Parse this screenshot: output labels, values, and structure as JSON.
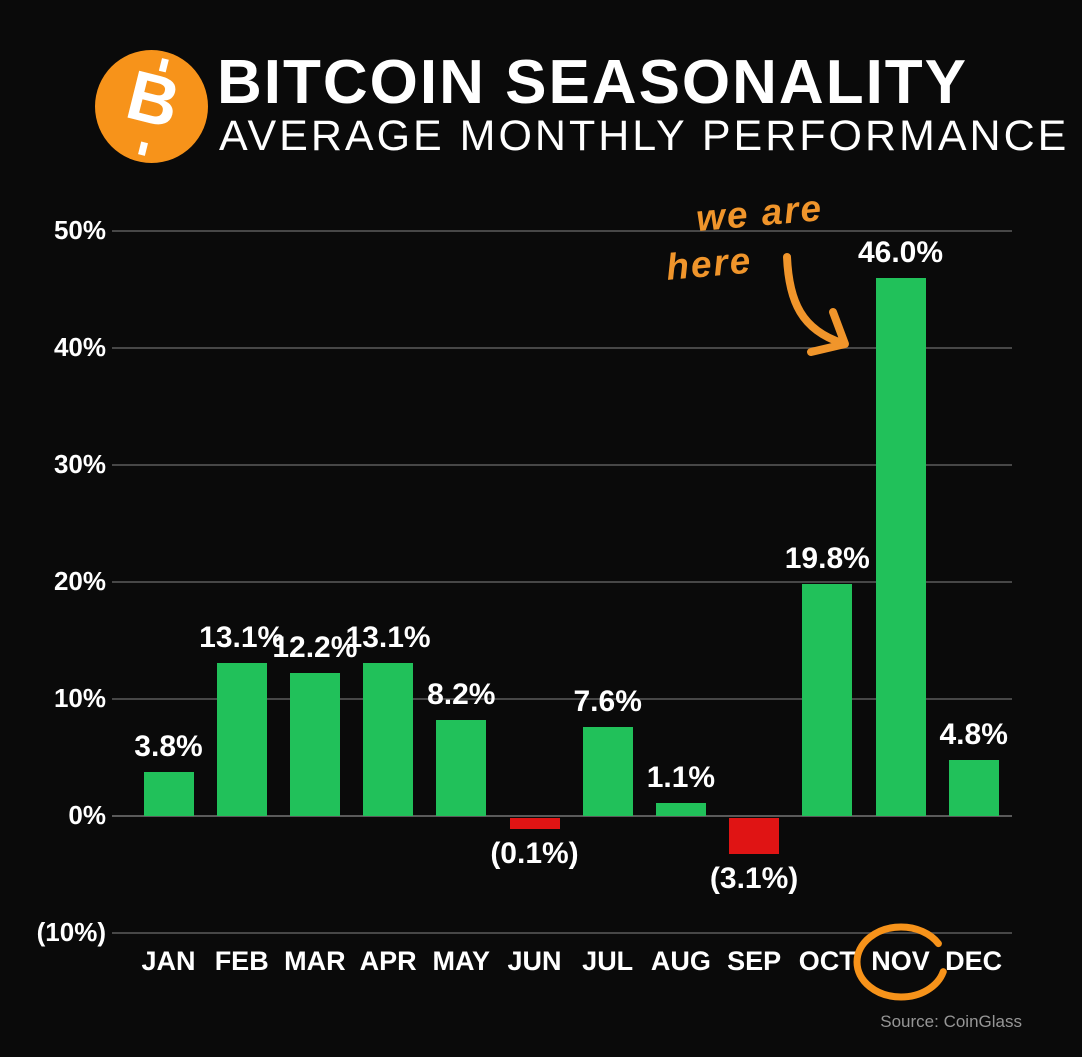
{
  "header": {
    "logo_letter": "B",
    "logo_color": "#f7931a"
  },
  "chart_data": {
    "type": "bar",
    "title": "BITCOIN SEASONALITY",
    "subtitle": "AVERAGE MONTHLY PERFORMANCE",
    "categories": [
      "JAN",
      "FEB",
      "MAR",
      "APR",
      "MAY",
      "JUN",
      "JUL",
      "AUG",
      "SEP",
      "OCT",
      "NOV",
      "DEC"
    ],
    "values": [
      3.8,
      13.1,
      12.2,
      13.1,
      8.2,
      -0.1,
      7.6,
      1.1,
      -3.1,
      19.8,
      46.0,
      4.8
    ],
    "value_labels": [
      "3.8%",
      "13.1%",
      "12.2%",
      "13.1%",
      "8.2%",
      "(0.1%)",
      "7.6%",
      "1.1%",
      "(3.1%)",
      "19.8%",
      "46.0%",
      "4.8%"
    ],
    "xlabel": "",
    "ylabel": "",
    "y_ticks": [
      "50%",
      "40%",
      "30%",
      "20%",
      "10%",
      "0%",
      "(10%)"
    ],
    "y_tick_values": [
      50,
      40,
      30,
      20,
      10,
      0,
      -10
    ],
    "ylim": [
      -10,
      55
    ],
    "grid": true,
    "legend": "none",
    "positive_color": "#21c15a",
    "negative_color": "#e01414",
    "highlight_month": "NOV",
    "highlight_color": "#f7931a"
  },
  "annotation": {
    "line1": "we are",
    "line2": "here",
    "color": "#f0952b"
  },
  "footer": {
    "source": "Source: CoinGlass"
  }
}
